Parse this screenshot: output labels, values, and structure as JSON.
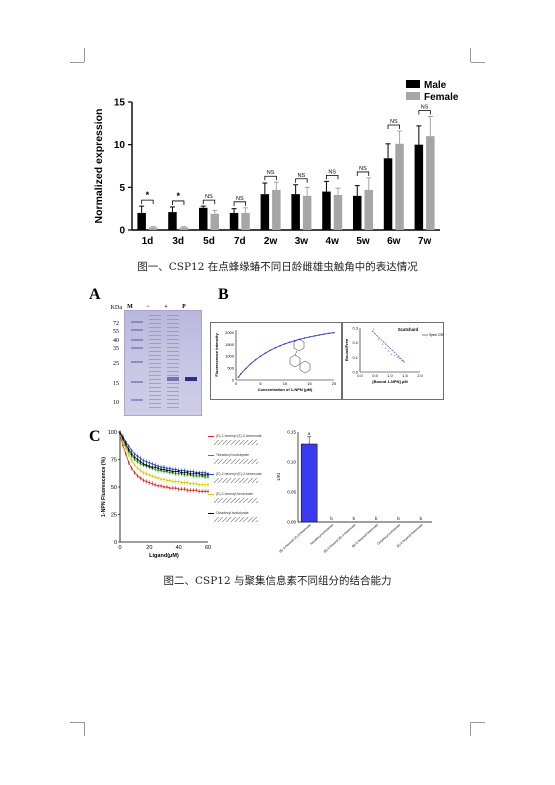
{
  "figure1": {
    "caption": "图一、CSP12 在点蜂缘蝽不同日龄雌雄虫触角中的表达情况",
    "chart_data": {
      "type": "bar",
      "categories": [
        "1d",
        "3d",
        "5d",
        "7d",
        "2w",
        "3w",
        "4w",
        "5w",
        "6w",
        "7w"
      ],
      "series": [
        {
          "name": "Male",
          "values": [
            2.0,
            2.1,
            2.6,
            2.0,
            4.2,
            4.2,
            4.5,
            4.0,
            8.4,
            10.0
          ],
          "errors": [
            0.8,
            0.6,
            0.2,
            0.5,
            1.3,
            1.1,
            1.2,
            1.2,
            1.7,
            2.2
          ],
          "color": "#000000"
        },
        {
          "name": "Female",
          "values": [
            0.3,
            0.3,
            1.9,
            2.0,
            4.7,
            4.0,
            4.1,
            4.7,
            10.1,
            11.0
          ],
          "errors": [
            0.1,
            0.1,
            0.4,
            0.6,
            0.9,
            1.0,
            0.8,
            1.4,
            1.5,
            2.3
          ],
          "color": "#a6a6a6"
        }
      ],
      "significance": [
        "*",
        "*",
        "NS",
        "NS",
        "NS",
        "NS",
        "NS",
        "NS",
        "NS",
        "NS"
      ],
      "ylabel": "Normalized expression",
      "yticks": [
        0,
        5,
        10,
        15
      ],
      "ylim": [
        0,
        15
      ],
      "legend_position": "top-right"
    }
  },
  "figure2": {
    "caption": "图二、CSP12 与聚集信息素不同组分的结合能力",
    "panelA": {
      "label": "A",
      "kda_title": "KDa",
      "lane_labels": [
        "M",
        "−",
        "+",
        "P"
      ],
      "markers": [
        "72",
        "55",
        "40",
        "35",
        "25",
        "15",
        "10"
      ]
    },
    "panelB": {
      "label": "B",
      "saturation": {
        "type": "line",
        "xlabel": "Concentration of 1-NPN (μM)",
        "ylabel": "Fluorescence intensity",
        "xticks": [
          0,
          5,
          10,
          15,
          20
        ],
        "yticks": [
          0,
          500,
          1000,
          1500,
          2000
        ],
        "x": [
          0.5,
          1,
          2,
          3,
          4,
          5,
          6,
          7,
          8,
          9,
          10,
          11,
          12,
          13,
          14,
          15,
          16,
          17,
          18,
          19,
          20
        ],
        "y": [
          120,
          260,
          480,
          680,
          850,
          1000,
          1130,
          1250,
          1350,
          1440,
          1520,
          1590,
          1650,
          1710,
          1760,
          1810,
          1850,
          1890,
          1930,
          1960,
          1990
        ]
      },
      "scatchard": {
        "type": "scatter",
        "title": "Scatchard",
        "legend": "Spexi CSP12",
        "xlabel": "[Bound 1-NPN] μM",
        "ylabel": "Bound/Free",
        "xticks": [
          "0.0",
          "0.5",
          "1.0",
          "1.5",
          "2.0"
        ],
        "yticks": [
          "0.0",
          "0.1",
          "0.2",
          "0.3"
        ],
        "x": [
          0.45,
          0.6,
          0.75,
          0.85,
          0.95,
          1.05,
          1.15,
          1.25,
          1.3,
          1.4,
          1.45
        ],
        "y": [
          0.29,
          0.22,
          0.19,
          0.16,
          0.14,
          0.12,
          0.11,
          0.1,
          0.09,
          0.08,
          0.07
        ]
      }
    },
    "panelC": {
      "label": "C",
      "competition": {
        "type": "line",
        "xlabel": "Ligand(μM)",
        "ylabel": "1-NPN Fluorescence (%)",
        "xticks": [
          0,
          20,
          40,
          60
        ],
        "yticks": [
          0,
          25,
          50,
          75,
          100
        ],
        "x": [
          0,
          2,
          4,
          6,
          8,
          10,
          12,
          14,
          16,
          18,
          20,
          22,
          24,
          26,
          28,
          30,
          32,
          34,
          36,
          38,
          40,
          42,
          44,
          46,
          48,
          50,
          52,
          54,
          56,
          58,
          60
        ],
        "series": [
          {
            "name": "(E)-2-hexenyl (Z)-3-hexenoate",
            "color": "#e02020",
            "values": [
              97,
              88,
              80,
              72,
              67,
              63,
              60,
              58,
              56,
              55,
              54,
              53,
              52,
              51,
              51,
              50,
              50,
              49,
              49,
              49,
              48,
              48,
              48,
              47,
              47,
              47,
              47,
              46,
              46,
              46,
              46
            ]
          },
          {
            "name": "Tetradecyl isobutyrate",
            "color": "#1aa81a",
            "values": [
              99,
              93,
              87,
              82,
              78,
              75,
              73,
              71,
              70,
              69,
              68,
              67,
              66,
              65,
              65,
              64,
              64,
              63,
              63,
              62,
              62,
              62,
              61,
              61,
              61,
              60,
              60,
              60,
              60,
              59,
              59
            ]
          },
          {
            "name": "(E)-2-hexenyl (E)-2-hexenoate",
            "color": "#2040d0",
            "values": [
              100,
              96,
              91,
              87,
              83,
              80,
              78,
              76,
              74,
              73,
              72,
              71,
              70,
              69,
              68,
              68,
              67,
              67,
              66,
              66,
              65,
              65,
              65,
              64,
              64,
              64,
              63,
              63,
              63,
              63,
              62
            ]
          },
          {
            "name": "(E)-2-hexenyl hexenoate",
            "color": "#d8c800",
            "values": [
              98,
              91,
              85,
              79,
              74,
              70,
              67,
              65,
              63,
              62,
              61,
              60,
              59,
              58,
              57,
              57,
              56,
              56,
              55,
              55,
              55,
              54,
              54,
              54,
              53,
              53,
              53,
              52,
              52,
              52,
              52
            ]
          },
          {
            "name": "Octadecyl isobutyrate",
            "color": "#000000",
            "values": [
              99,
              94,
              89,
              84,
              80,
              77,
              75,
              73,
              71,
              70,
              69,
              68,
              68,
              67,
              66,
              66,
              65,
              65,
              64,
              64,
              64,
              63,
              63,
              63,
              62,
              62,
              62,
              62,
              61,
              61,
              61
            ]
          }
        ]
      },
      "ki_bar": {
        "type": "bar",
        "ylabel": "1/Ki",
        "yticks": [
          "0.00",
          "0.05",
          "0.10",
          "0.15"
        ],
        "categories": [
          "(E)-2-hexenyl (Z)-3-hexenoate",
          "Tetradecyl isobutyrate",
          "(E)-2-hexenyl (E)-2-hexenoate",
          "(E)-2-hexenyl hexenoate",
          "Octadecyl isobutyrate",
          "(E)-2-hexenyl hexenoate"
        ],
        "values": [
          0.13,
          0,
          0,
          0,
          0,
          0
        ],
        "letters": [
          "a",
          "b",
          "b",
          "b",
          "b",
          "b"
        ],
        "color": "#3a3af0"
      }
    }
  }
}
